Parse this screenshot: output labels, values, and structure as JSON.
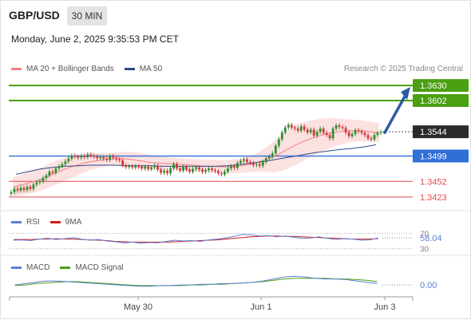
{
  "header": {
    "symbol": "GBP/USD",
    "interval": "30 MIN",
    "datetime": "Monday, June 2, 2025 9:35:53 PM CET"
  },
  "legend": {
    "ma20": "MA 20 + Bollinger Bands",
    "ma50": "MA 50",
    "credit": "Research © 2025 Trading Central"
  },
  "rsi_legend": {
    "rsi": "RSI",
    "ma": "9MA"
  },
  "macd_legend": {
    "macd": "MACD",
    "signal": "MACD Signal"
  },
  "colors": {
    "ma20": "#f08080",
    "ma50": "#2c4a8a",
    "bands_fill": "#fbdcdc",
    "resistance": "#4aa012",
    "pivot": "#2f6fd6",
    "support": "#e5484d",
    "current": "#2a2a2a",
    "arrow": "#2c5aa0",
    "candle_up": "#2f8f2f",
    "candle_down": "#d03a3a",
    "rsi": "#5b7fd6",
    "rsi_ma": "#d01c1c",
    "macd": "#5b7fd6",
    "macd_signal": "#4aa012"
  },
  "chart_data": [
    {
      "type": "candlestick",
      "panel": "price",
      "x_ticks": [
        "May 30",
        "Jun 1",
        "Jun 3"
      ],
      "ylim": [
        1.3405,
        1.3645
      ],
      "current_price": 1.3544,
      "levels": [
        {
          "label": "1.3630",
          "value": 1.363,
          "kind": "resistance"
        },
        {
          "label": "1.3602",
          "value": 1.3602,
          "kind": "resistance"
        },
        {
          "label": "1.3544",
          "value": 1.3544,
          "kind": "current"
        },
        {
          "label": "1.3499",
          "value": 1.3499,
          "kind": "pivot"
        },
        {
          "label": "1.3452",
          "value": 1.3452,
          "kind": "support"
        },
        {
          "label": "1.3423",
          "value": 1.3423,
          "kind": "support"
        }
      ],
      "close": [
        1.3432,
        1.3438,
        1.3435,
        1.344,
        1.3436,
        1.3442,
        1.3438,
        1.3446,
        1.345,
        1.3452,
        1.3458,
        1.3463,
        1.347,
        1.3468,
        1.3476,
        1.348,
        1.3484,
        1.3489,
        1.3494,
        1.35,
        1.3498,
        1.3496,
        1.3499,
        1.3497,
        1.3502,
        1.35,
        1.3498,
        1.3495,
        1.3497,
        1.3494,
        1.3492,
        1.3499,
        1.3496,
        1.3493,
        1.3491,
        1.3482,
        1.3479,
        1.348,
        1.3478,
        1.348,
        1.3479,
        1.3476,
        1.3479,
        1.3475,
        1.3478,
        1.3481,
        1.3474,
        1.3468,
        1.3472,
        1.3467,
        1.3476,
        1.3484,
        1.3476,
        1.3472,
        1.3479,
        1.3474,
        1.347,
        1.3475,
        1.3478,
        1.3474,
        1.347,
        1.3473,
        1.3476,
        1.3473,
        1.3471,
        1.3467,
        1.3465,
        1.347,
        1.3476,
        1.348,
        1.3477,
        1.3486,
        1.349,
        1.3493,
        1.3488,
        1.3486,
        1.3482,
        1.3484,
        1.3481,
        1.3488,
        1.3495,
        1.3498,
        1.3504,
        1.3518,
        1.353,
        1.3543,
        1.3552,
        1.3557,
        1.3552,
        1.355,
        1.3546,
        1.3554,
        1.3548,
        1.3543,
        1.3548,
        1.3537,
        1.3544,
        1.355,
        1.3542,
        1.3538,
        1.3532,
        1.355,
        1.3556,
        1.3553,
        1.3551,
        1.3543,
        1.3536,
        1.354,
        1.3547,
        1.3545,
        1.3542,
        1.3538,
        1.3532,
        1.353,
        1.3538,
        1.3542,
        1.3544
      ],
      "ma20": [
        1.3441,
        1.3445,
        1.3448,
        1.3452,
        1.3456,
        1.3461,
        1.3467,
        1.3472,
        1.3477,
        1.3481,
        1.3485,
        1.3488,
        1.349,
        1.3492,
        1.3493,
        1.3494,
        1.3494,
        1.3493,
        1.3491,
        1.3489,
        1.3487,
        1.3486,
        1.3485,
        1.3485,
        1.3484,
        1.3483,
        1.3482,
        1.3481,
        1.348,
        1.348,
        1.3479,
        1.3479,
        1.348,
        1.3481,
        1.3483,
        1.3486,
        1.349,
        1.3494,
        1.3499,
        1.3506,
        1.3513,
        1.352,
        1.3526,
        1.3531,
        1.3535,
        1.3539,
        1.3542,
        1.3544,
        1.3545,
        1.3546,
        1.3546,
        1.3545,
        1.3544,
        1.3542
      ],
      "ma50": [
        1.3465,
        1.347,
        1.3475,
        1.3478,
        1.348,
        1.3481,
        1.3482,
        1.3482,
        1.3482,
        1.3481,
        1.3481,
        1.3481,
        1.348,
        1.348,
        1.348,
        1.348,
        1.348,
        1.3481,
        1.3483,
        1.3486,
        1.3489,
        1.3493,
        1.3497,
        1.3501,
        1.3505,
        1.3508,
        1.3511,
        1.3513,
        1.3516,
        1.352
      ]
    },
    {
      "type": "line",
      "panel": "rsi",
      "current_value": "58.04",
      "levels": [
        70,
        30
      ],
      "ylim": [
        25,
        75
      ],
      "series": [
        {
          "name": "RSI",
          "values": [
            52,
            53,
            51,
            55,
            57,
            54,
            56,
            59,
            55,
            52,
            54,
            50,
            48,
            45,
            47,
            44,
            46,
            45,
            49,
            52,
            50,
            51,
            49,
            53,
            55,
            58,
            62,
            67,
            66,
            63,
            64,
            61,
            63,
            60,
            57,
            58,
            61,
            57,
            54,
            56,
            55,
            52,
            53,
            58
          ]
        },
        {
          "name": "9MA",
          "values": [
            54,
            54,
            54,
            55,
            55,
            56,
            55,
            55,
            54,
            53,
            52,
            51,
            49,
            48,
            47,
            47,
            47,
            47,
            47,
            48,
            49,
            50,
            51,
            52,
            53,
            55,
            57,
            59,
            61,
            62,
            63,
            63,
            62,
            62,
            61,
            60,
            59,
            58,
            57,
            56,
            55,
            55,
            55,
            56
          ]
        }
      ]
    },
    {
      "type": "line",
      "panel": "macd",
      "current_value": "0.00",
      "ylim": [
        -0.0012,
        0.0017
      ],
      "series": [
        {
          "name": "MACD",
          "values": [
            0.0,
            0.0002,
            0.0004,
            0.0006,
            0.0006,
            0.0005,
            0.0004,
            0.0003,
            0.0002,
            0.0001,
            0.0,
            -0.0001,
            -0.0002,
            -0.0002,
            -0.0001,
            -0.0001,
            0.0,
            0.0,
            0.0001,
            0.0001,
            0.0002,
            0.0002,
            0.0003,
            0.0004,
            0.0006,
            0.0009,
            0.0012,
            0.0013,
            0.0012,
            0.001,
            0.0009,
            0.0009,
            0.0008,
            0.0006,
            0.0004,
            0.0002
          ]
        },
        {
          "name": "MACD Signal",
          "values": [
            -0.0001,
            0.0,
            0.0002,
            0.0003,
            0.0004,
            0.0005,
            0.0005,
            0.0004,
            0.0003,
            0.0002,
            0.0001,
            0.0,
            -0.0001,
            -0.0001,
            -0.0001,
            -0.0001,
            -0.0001,
            0.0,
            0.0,
            0.0001,
            0.0001,
            0.0002,
            0.0003,
            0.0004,
            0.0005,
            0.0007,
            0.0009,
            0.001,
            0.001,
            0.001,
            0.001,
            0.0009,
            0.0009,
            0.0008,
            0.0007,
            0.0005
          ]
        }
      ]
    }
  ]
}
